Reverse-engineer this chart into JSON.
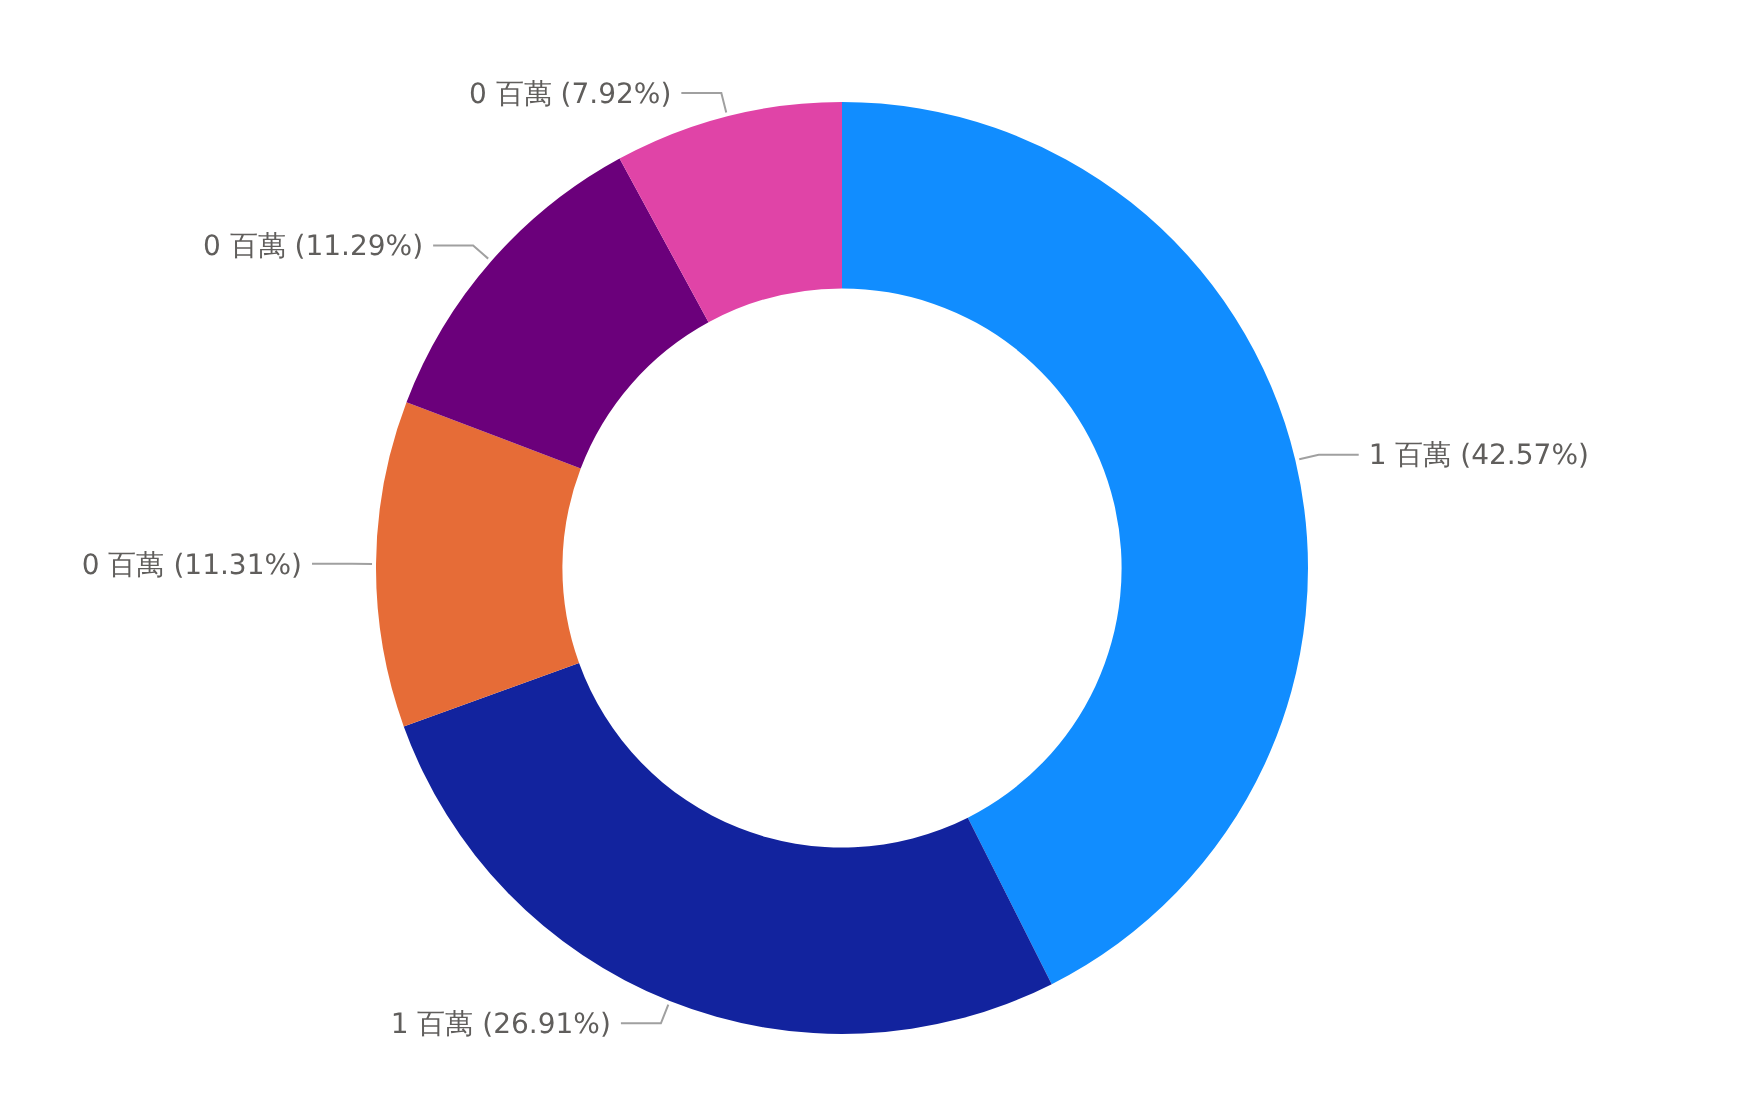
{
  "chart_data": {
    "type": "donut",
    "categories": [
      null,
      null,
      null,
      null,
      null
    ],
    "values": [
      42.57,
      26.91,
      11.31,
      11.29,
      7.92
    ],
    "value_labels": [
      "1 百萬 (42.57%)",
      "1 百萬 (26.91%)",
      "0 百萬 (11.31%)",
      "0 百萬 (11.29%)",
      "0 百萬 (7.92%)"
    ],
    "colors": [
      "#118dff",
      "#12239e",
      "#e66c37",
      "#6b007b",
      "#e044a7"
    ],
    "legend": false
  }
}
